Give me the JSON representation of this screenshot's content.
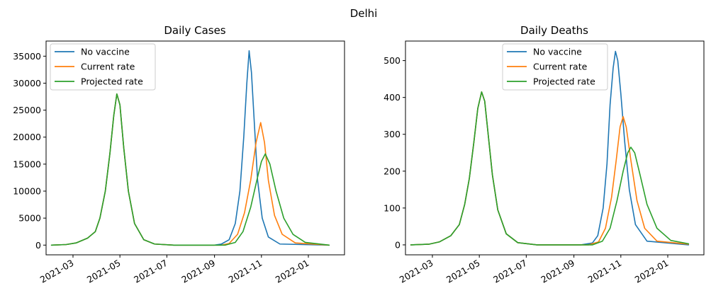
{
  "figure": {
    "suptitle": "Delhi"
  },
  "colors": {
    "no_vaccine": "#1f77b4",
    "current_rate": "#ff7f0e",
    "projected_rate": "#2ca02c"
  },
  "chart_data": [
    {
      "type": "line",
      "title": "Daily Cases",
      "xlabel": "",
      "ylabel": "",
      "x_axis": "date",
      "xlim": [
        "2021-01-25",
        "2022-02-17"
      ],
      "ylim": [
        -1800,
        37800
      ],
      "x_ticks": [
        "2021-03-01",
        "2021-05-01",
        "2021-07-01",
        "2021-09-01",
        "2021-11-01",
        "2022-01-01"
      ],
      "x_tick_labels": [
        "2021-03",
        "2021-05",
        "2021-07",
        "2021-09",
        "2021-11",
        "2022-01"
      ],
      "y_ticks": [
        0,
        5000,
        10000,
        15000,
        20000,
        25000,
        30000,
        35000
      ],
      "y_tick_labels": [
        "0",
        "5000",
        "10000",
        "15000",
        "20000",
        "25000",
        "30000",
        "35000"
      ],
      "grid": false,
      "legend": {
        "position": "upper-left",
        "entries": [
          "No vaccine",
          "Current rate",
          "Projected rate"
        ]
      },
      "series": [
        {
          "name": "No vaccine",
          "points": [
            [
              "2021-02-01",
              0
            ],
            [
              "2021-02-20",
              100
            ],
            [
              "2021-03-05",
              400
            ],
            [
              "2021-03-20",
              1300
            ],
            [
              "2021-03-30",
              2500
            ],
            [
              "2021-04-05",
              5000
            ],
            [
              "2021-04-12",
              10000
            ],
            [
              "2021-04-18",
              17000
            ],
            [
              "2021-04-23",
              24000
            ],
            [
              "2021-04-27",
              28000
            ],
            [
              "2021-05-01",
              26000
            ],
            [
              "2021-05-06",
              18000
            ],
            [
              "2021-05-12",
              10000
            ],
            [
              "2021-05-20",
              4000
            ],
            [
              "2021-06-01",
              1000
            ],
            [
              "2021-06-15",
              200
            ],
            [
              "2021-07-10",
              0
            ],
            [
              "2021-09-01",
              0
            ],
            [
              "2021-09-10",
              200
            ],
            [
              "2021-09-20",
              1000
            ],
            [
              "2021-09-28",
              4000
            ],
            [
              "2021-10-04",
              10000
            ],
            [
              "2021-10-09",
              20000
            ],
            [
              "2021-10-13",
              30000
            ],
            [
              "2021-10-16",
              36000
            ],
            [
              "2021-10-19",
              32000
            ],
            [
              "2021-10-23",
              22000
            ],
            [
              "2021-10-27",
              12000
            ],
            [
              "2021-11-02",
              5000
            ],
            [
              "2021-11-10",
              1500
            ],
            [
              "2021-11-25",
              200
            ],
            [
              "2022-01-28",
              0
            ]
          ]
        },
        {
          "name": "Current rate",
          "points": [
            [
              "2021-02-01",
              0
            ],
            [
              "2021-02-20",
              100
            ],
            [
              "2021-03-05",
              400
            ],
            [
              "2021-03-20",
              1300
            ],
            [
              "2021-03-30",
              2500
            ],
            [
              "2021-04-05",
              5000
            ],
            [
              "2021-04-12",
              10000
            ],
            [
              "2021-04-18",
              17000
            ],
            [
              "2021-04-23",
              24000
            ],
            [
              "2021-04-27",
              28000
            ],
            [
              "2021-05-01",
              26000
            ],
            [
              "2021-05-06",
              18000
            ],
            [
              "2021-05-12",
              10000
            ],
            [
              "2021-05-20",
              4000
            ],
            [
              "2021-06-01",
              1000
            ],
            [
              "2021-06-15",
              200
            ],
            [
              "2021-07-10",
              0
            ],
            [
              "2021-09-10",
              0
            ],
            [
              "2021-09-20",
              300
            ],
            [
              "2021-10-01",
              2000
            ],
            [
              "2021-10-10",
              6000
            ],
            [
              "2021-10-18",
              12000
            ],
            [
              "2021-10-25",
              19000
            ],
            [
              "2021-10-31",
              22700
            ],
            [
              "2021-11-05",
              19000
            ],
            [
              "2021-11-10",
              12000
            ],
            [
              "2021-11-18",
              5500
            ],
            [
              "2021-11-28",
              2000
            ],
            [
              "2021-12-15",
              400
            ],
            [
              "2022-01-28",
              0
            ]
          ]
        },
        {
          "name": "Projected rate",
          "points": [
            [
              "2021-02-01",
              0
            ],
            [
              "2021-02-20",
              100
            ],
            [
              "2021-03-05",
              400
            ],
            [
              "2021-03-20",
              1300
            ],
            [
              "2021-03-30",
              2500
            ],
            [
              "2021-04-05",
              5000
            ],
            [
              "2021-04-12",
              10000
            ],
            [
              "2021-04-18",
              17000
            ],
            [
              "2021-04-23",
              24000
            ],
            [
              "2021-04-27",
              28000
            ],
            [
              "2021-05-01",
              26000
            ],
            [
              "2021-05-06",
              18000
            ],
            [
              "2021-05-12",
              10000
            ],
            [
              "2021-05-20",
              4000
            ],
            [
              "2021-06-01",
              1000
            ],
            [
              "2021-06-15",
              200
            ],
            [
              "2021-07-10",
              0
            ],
            [
              "2021-09-15",
              0
            ],
            [
              "2021-09-28",
              500
            ],
            [
              "2021-10-08",
              2500
            ],
            [
              "2021-10-18",
              7000
            ],
            [
              "2021-10-26",
              12000
            ],
            [
              "2021-11-01",
              15500
            ],
            [
              "2021-11-06",
              16900
            ],
            [
              "2021-11-12",
              15000
            ],
            [
              "2021-11-20",
              10000
            ],
            [
              "2021-11-30",
              5000
            ],
            [
              "2021-12-12",
              2000
            ],
            [
              "2021-12-28",
              500
            ],
            [
              "2022-01-28",
              0
            ]
          ]
        }
      ]
    },
    {
      "type": "line",
      "title": "Daily Deaths",
      "xlabel": "",
      "ylabel": "",
      "x_axis": "date",
      "xlim": [
        "2021-01-25",
        "2022-02-17"
      ],
      "ylim": [
        -27,
        553
      ],
      "x_ticks": [
        "2021-03-01",
        "2021-05-01",
        "2021-07-01",
        "2021-09-01",
        "2021-11-01",
        "2022-01-01"
      ],
      "x_tick_labels": [
        "2021-03",
        "2021-05",
        "2021-07",
        "2021-09",
        "2021-11",
        "2022-01"
      ],
      "y_ticks": [
        0,
        100,
        200,
        300,
        400,
        500
      ],
      "y_tick_labels": [
        "0",
        "100",
        "200",
        "300",
        "400",
        "500"
      ],
      "grid": false,
      "legend": {
        "position": "upper-center",
        "entries": [
          "No vaccine",
          "Current rate",
          "Projected rate"
        ]
      },
      "series": [
        {
          "name": "No vaccine",
          "points": [
            [
              "2021-02-01",
              0
            ],
            [
              "2021-02-25",
              2
            ],
            [
              "2021-03-10",
              8
            ],
            [
              "2021-03-25",
              25
            ],
            [
              "2021-04-05",
              55
            ],
            [
              "2021-04-12",
              110
            ],
            [
              "2021-04-18",
              180
            ],
            [
              "2021-04-24",
              280
            ],
            [
              "2021-04-29",
              370
            ],
            [
              "2021-05-04",
              415
            ],
            [
              "2021-05-08",
              390
            ],
            [
              "2021-05-13",
              290
            ],
            [
              "2021-05-18",
              190
            ],
            [
              "2021-05-25",
              95
            ],
            [
              "2021-06-05",
              30
            ],
            [
              "2021-06-20",
              6
            ],
            [
              "2021-07-15",
              0
            ],
            [
              "2021-09-10",
              0
            ],
            [
              "2021-09-25",
              5
            ],
            [
              "2021-10-02",
              25
            ],
            [
              "2021-10-09",
              100
            ],
            [
              "2021-10-14",
              220
            ],
            [
              "2021-10-18",
              380
            ],
            [
              "2021-10-22",
              480
            ],
            [
              "2021-10-25",
              525
            ],
            [
              "2021-10-28",
              500
            ],
            [
              "2021-11-01",
              410
            ],
            [
              "2021-11-06",
              280
            ],
            [
              "2021-11-12",
              150
            ],
            [
              "2021-11-20",
              55
            ],
            [
              "2021-12-05",
              10
            ],
            [
              "2022-01-28",
              0
            ]
          ]
        },
        {
          "name": "Current rate",
          "points": [
            [
              "2021-02-01",
              0
            ],
            [
              "2021-02-25",
              2
            ],
            [
              "2021-03-10",
              8
            ],
            [
              "2021-03-25",
              25
            ],
            [
              "2021-04-05",
              55
            ],
            [
              "2021-04-12",
              110
            ],
            [
              "2021-04-18",
              180
            ],
            [
              "2021-04-24",
              280
            ],
            [
              "2021-04-29",
              370
            ],
            [
              "2021-05-04",
              415
            ],
            [
              "2021-05-08",
              390
            ],
            [
              "2021-05-13",
              290
            ],
            [
              "2021-05-18",
              190
            ],
            [
              "2021-05-25",
              95
            ],
            [
              "2021-06-05",
              30
            ],
            [
              "2021-06-20",
              6
            ],
            [
              "2021-07-15",
              0
            ],
            [
              "2021-09-20",
              0
            ],
            [
              "2021-10-03",
              8
            ],
            [
              "2021-10-12",
              45
            ],
            [
              "2021-10-20",
              130
            ],
            [
              "2021-10-26",
              230
            ],
            [
              "2021-10-31",
              320
            ],
            [
              "2021-11-04",
              348
            ],
            [
              "2021-11-08",
              320
            ],
            [
              "2021-11-14",
              230
            ],
            [
              "2021-11-22",
              120
            ],
            [
              "2021-12-02",
              45
            ],
            [
              "2021-12-18",
              10
            ],
            [
              "2022-01-28",
              2
            ]
          ]
        },
        {
          "name": "Projected rate",
          "points": [
            [
              "2021-02-01",
              0
            ],
            [
              "2021-02-25",
              2
            ],
            [
              "2021-03-10",
              8
            ],
            [
              "2021-03-25",
              25
            ],
            [
              "2021-04-05",
              55
            ],
            [
              "2021-04-12",
              110
            ],
            [
              "2021-04-18",
              180
            ],
            [
              "2021-04-24",
              280
            ],
            [
              "2021-04-29",
              370
            ],
            [
              "2021-05-04",
              415
            ],
            [
              "2021-05-08",
              390
            ],
            [
              "2021-05-13",
              290
            ],
            [
              "2021-05-18",
              190
            ],
            [
              "2021-05-25",
              95
            ],
            [
              "2021-06-05",
              30
            ],
            [
              "2021-06-20",
              6
            ],
            [
              "2021-07-15",
              0
            ],
            [
              "2021-09-25",
              0
            ],
            [
              "2021-10-08",
              10
            ],
            [
              "2021-10-18",
              45
            ],
            [
              "2021-10-27",
              120
            ],
            [
              "2021-11-04",
              200
            ],
            [
              "2021-11-10",
              250
            ],
            [
              "2021-11-14",
              265
            ],
            [
              "2021-11-19",
              250
            ],
            [
              "2021-11-26",
              190
            ],
            [
              "2021-12-05",
              110
            ],
            [
              "2021-12-18",
              45
            ],
            [
              "2022-01-05",
              12
            ],
            [
              "2022-01-28",
              3
            ]
          ]
        }
      ]
    }
  ]
}
